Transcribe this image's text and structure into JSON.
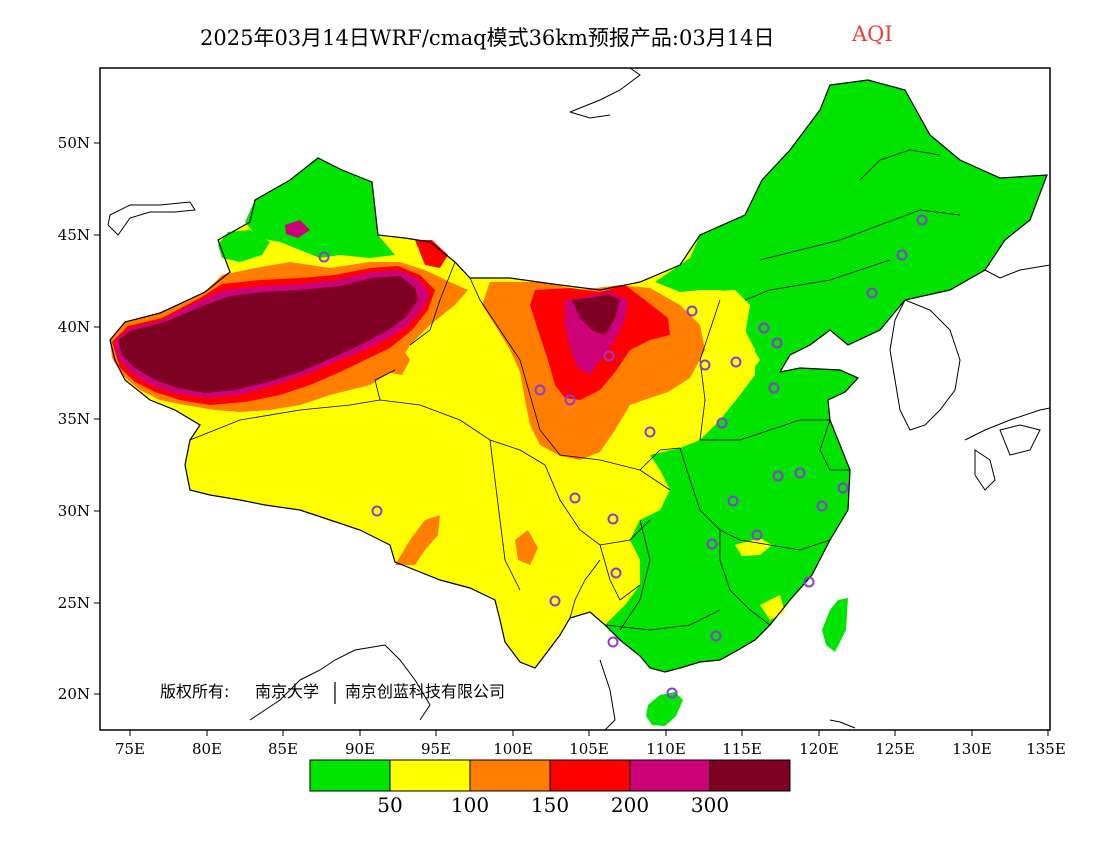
{
  "title": {
    "text": "2025年03月14日WRF/cmaq模式36km预报产品:03月14日",
    "variable": "AQI",
    "variable_color": "#e8403a"
  },
  "axes": {
    "lon_labels": [
      "75E",
      "80E",
      "85E",
      "90E",
      "95E",
      "100E",
      "105E",
      "110E",
      "115E",
      "120E",
      "125E",
      "130E",
      "135E"
    ],
    "lat_labels": [
      "20N",
      "25N",
      "30N",
      "35N",
      "40N",
      "45N",
      "50N"
    ]
  },
  "copyright": {
    "prefix": "版权所有:",
    "org1": "南京大学",
    "org2": "南京创蓝科技有限公司"
  },
  "colorbar": {
    "colors": [
      "#00e400",
      "#ffff00",
      "#ff7e00",
      "#ff0000",
      "#cc0077",
      "#7e0023"
    ],
    "labels": [
      "50",
      "100",
      "150",
      "200",
      "300"
    ]
  },
  "stations": {
    "marker_color": "#8a3cd6"
  }
}
